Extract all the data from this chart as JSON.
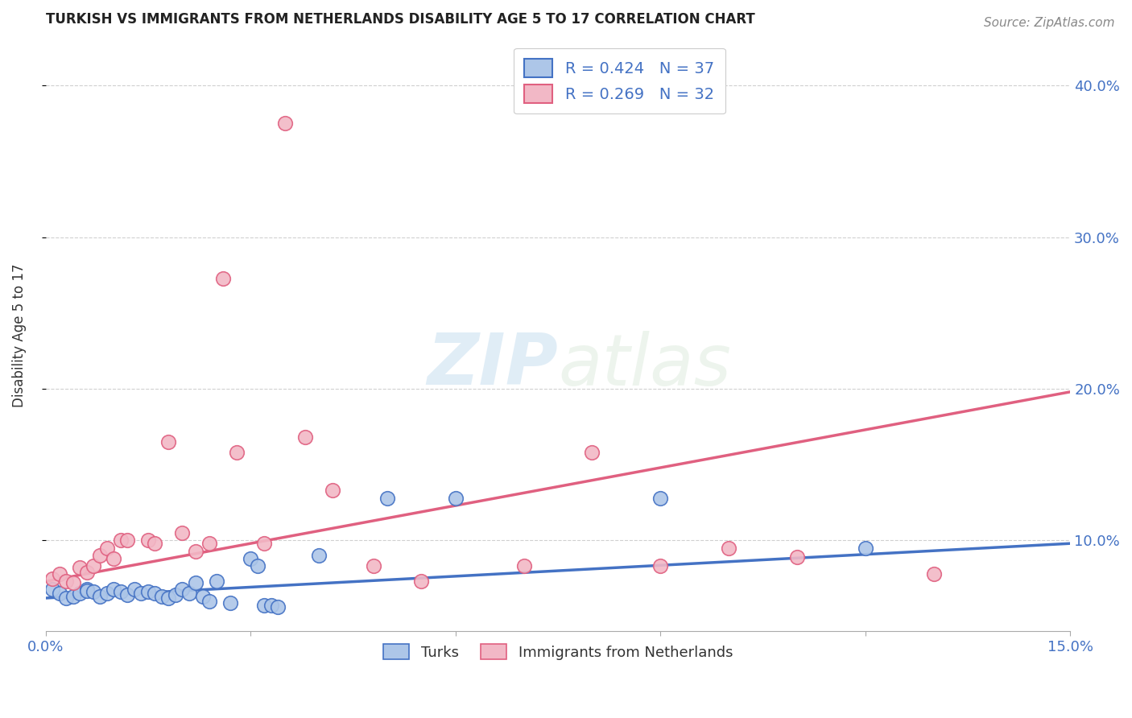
{
  "title": "TURKISH VS IMMIGRANTS FROM NETHERLANDS DISABILITY AGE 5 TO 17 CORRELATION CHART",
  "source": "Source: ZipAtlas.com",
  "ylabel": "Disability Age 5 to 17",
  "watermark_zip": "ZIP",
  "watermark_atlas": "atlas",
  "blue_color": "#adc6e8",
  "blue_line_color": "#4472c4",
  "pink_color": "#f2b8c6",
  "pink_line_color": "#e06080",
  "xlim": [
    0.0,
    0.15
  ],
  "ylim": [
    0.04,
    0.43
  ],
  "legend_text_blue": "R = 0.424   N = 37",
  "legend_text_pink": "R = 0.269   N = 32",
  "turks_x": [
    0.001,
    0.002,
    0.003,
    0.004,
    0.005,
    0.006,
    0.006,
    0.007,
    0.008,
    0.009,
    0.01,
    0.011,
    0.012,
    0.013,
    0.014,
    0.015,
    0.016,
    0.017,
    0.018,
    0.019,
    0.02,
    0.021,
    0.022,
    0.023,
    0.024,
    0.025,
    0.027,
    0.03,
    0.031,
    0.032,
    0.033,
    0.034,
    0.04,
    0.05,
    0.06,
    0.09,
    0.12
  ],
  "turks_y": [
    0.068,
    0.065,
    0.062,
    0.063,
    0.065,
    0.068,
    0.067,
    0.066,
    0.063,
    0.065,
    0.068,
    0.066,
    0.064,
    0.068,
    0.065,
    0.066,
    0.065,
    0.063,
    0.062,
    0.064,
    0.068,
    0.065,
    0.072,
    0.063,
    0.06,
    0.073,
    0.059,
    0.088,
    0.083,
    0.057,
    0.057,
    0.056,
    0.09,
    0.128,
    0.128,
    0.128,
    0.095
  ],
  "netherlands_x": [
    0.001,
    0.002,
    0.003,
    0.004,
    0.005,
    0.006,
    0.007,
    0.008,
    0.009,
    0.01,
    0.011,
    0.012,
    0.015,
    0.016,
    0.018,
    0.02,
    0.022,
    0.024,
    0.026,
    0.028,
    0.032,
    0.035,
    0.038,
    0.042,
    0.048,
    0.055,
    0.07,
    0.08,
    0.09,
    0.1,
    0.11,
    0.13
  ],
  "netherlands_y": [
    0.075,
    0.078,
    0.073,
    0.072,
    0.082,
    0.079,
    0.083,
    0.09,
    0.095,
    0.088,
    0.1,
    0.1,
    0.1,
    0.098,
    0.165,
    0.105,
    0.093,
    0.098,
    0.273,
    0.158,
    0.098,
    0.375,
    0.168,
    0.133,
    0.083,
    0.073,
    0.083,
    0.158,
    0.083,
    0.095,
    0.089,
    0.078
  ],
  "blue_trendline_x": [
    0.0,
    0.15
  ],
  "blue_trendline_y": [
    0.062,
    0.098
  ],
  "pink_trendline_x": [
    0.0,
    0.15
  ],
  "pink_trendline_y": [
    0.073,
    0.198
  ],
  "grid_color": "#d0d0d0",
  "background_color": "#ffffff",
  "title_fontsize": 12,
  "axis_label_fontsize": 12,
  "tick_fontsize": 13,
  "legend_fontsize": 14
}
